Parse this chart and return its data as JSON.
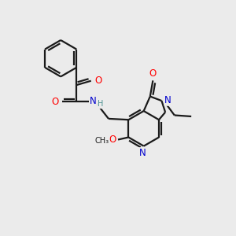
{
  "background_color": "#ebebeb",
  "bond_color": "#1a1a1a",
  "bond_width": 1.6,
  "atom_colors": {
    "O": "#ff0000",
    "N": "#0000cd",
    "N_gray": "#4a9090",
    "C": "#1a1a1a",
    "H": "#4a9090"
  },
  "font_size_atom": 8.5,
  "font_size_small": 7.0,
  "fig_width": 3.0,
  "fig_height": 3.0,
  "dpi": 100
}
